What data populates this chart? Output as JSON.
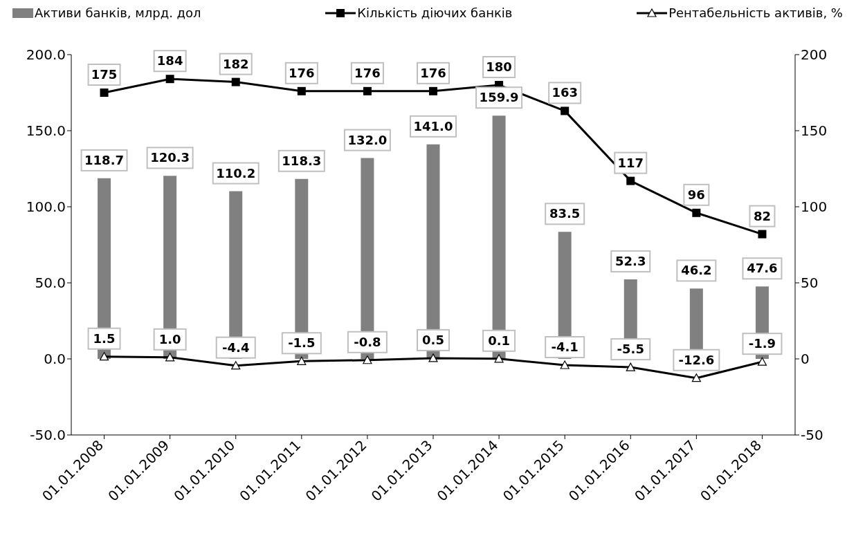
{
  "chart_data": {
    "type": "bar",
    "categories": [
      "01.01.2008",
      "01.01.2009",
      "01.01.2010",
      "01.01.2011",
      "01.01.2012",
      "01.01.2013",
      "01.01.2014",
      "01.01.2015",
      "01.01.2016",
      "01.01.2017",
      "01.01.2018"
    ],
    "series": [
      {
        "name": "Активи банків, млрд. дол",
        "color": "#808080",
        "values": [
          118.7,
          120.3,
          110.2,
          118.3,
          132.0,
          141.0,
          159.9,
          83.5,
          52.3,
          46.2,
          47.6
        ],
        "value_labels": [
          "118.7",
          "120.3",
          "110.2",
          "118.3",
          "132.0",
          "141.0",
          "159.9",
          "83.5",
          "52.3",
          "46.2",
          "47.6"
        ]
      },
      {
        "name": "Кількість діючих банків",
        "type": "line",
        "marker": "square",
        "color": "#000000",
        "values": [
          175,
          184,
          182,
          176,
          176,
          176,
          180,
          163,
          117,
          96,
          82
        ],
        "value_labels": [
          "175",
          "184",
          "182",
          "176",
          "176",
          "176",
          "180",
          "163",
          "117",
          "96",
          "82"
        ]
      },
      {
        "name": "Рентабельність активів, %",
        "type": "line",
        "marker": "triangle",
        "color": "#000000",
        "values": [
          1.5,
          1.0,
          -4.4,
          -1.5,
          -0.8,
          0.5,
          0.1,
          -4.1,
          -5.5,
          -12.6,
          -1.9
        ],
        "value_labels": [
          "1.5",
          "1.0",
          "-4.4",
          "-1.5",
          "-0.8",
          "0.5",
          "0.1",
          "-4.1",
          "-5.5",
          "-12.6",
          "-1.9"
        ]
      }
    ],
    "ylim": [
      -50,
      200
    ],
    "yticks": [
      {
        "value": -50,
        "label": "-50.0"
      },
      {
        "value": 0,
        "label": "0.0"
      },
      {
        "value": 50,
        "label": "50.0"
      },
      {
        "value": 100,
        "label": "100.0"
      },
      {
        "value": 150,
        "label": "150.0"
      },
      {
        "value": 200,
        "label": "200.0"
      }
    ],
    "y2lim": [
      -50,
      200
    ],
    "y2ticks": [
      -50,
      0,
      50,
      100,
      150,
      200
    ],
    "legend": "top"
  }
}
